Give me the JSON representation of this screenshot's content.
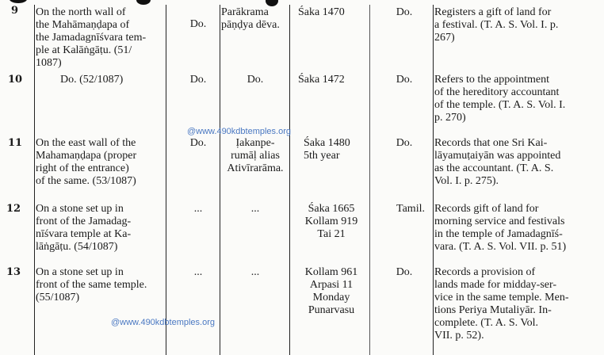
{
  "rows": [
    {
      "no": "9",
      "place": "On the north wall of\nthe Mahāmaṇḍapa of\nthe Jamadagnīśvara tem-\nple at Kalāṅgāṭu. (51/\n1087)",
      "lang": "Do.",
      "king": "Parākrama\npāṇḍya dēva.",
      "date": "Śaka 1470",
      "script": "Do.",
      "remarks": "Registers a gift of land for\na festival. (T. A. S. Vol. I. p.\n267)"
    },
    {
      "no": "10",
      "place": "Do. (52/1087)",
      "lang": "Do.",
      "king": "Do.",
      "date": "Śaka 1472",
      "script": "Do.",
      "remarks": "Refers to the appointment\nof the hereditory accountant\nof the temple. (T. A. S. Vol. I.\np. 270)"
    },
    {
      "no": "11",
      "place": "On the east wall of the\nMahamaṇḍapa (proper\nright of the entrance)\nof the same. (53/1087)",
      "lang": "Do.",
      "king": "Ịakanpe-\nrumāḷ alias\nAtivīrarāma.",
      "date": "Śaka 1480\n5th year",
      "script": "Do.",
      "remarks": "Records that one Sri Kai-\nlāyamuṭaiyān was appointed\nas the accountant. (T. A. S.\nVol. I. p. 275)."
    },
    {
      "no": "12",
      "place": "On a stone set up in\nfront of the Jamadag-\nnīśvara temple at Ka-\nlāṅgāṭu. (54/1087)",
      "lang": "...",
      "king": "...",
      "date": "Śaka 1665\nKollam 919\nTai 21",
      "script": "Tamil.",
      "remarks": "Records gift of land for\nmorning service and festivals\nin the temple of Jamadagnīś-\nvara. (T. A. S. Vol. VII. p. 51)"
    },
    {
      "no": "13",
      "place": "On a stone set up in\nfront of the same temple.\n(55/1087)",
      "lang": "...",
      "king": "...",
      "date": "Kollam 961\nArpasi 11\nMonday\nPunarvasu",
      "script": "Do.",
      "remarks": "Records a provision of\nlands made for midday-ser-\nvice in the same temple. Men-\ntions Periya Mutaliyār. In-\ncomplete. (T. A. S. Vol.\nVII. p. 52)."
    }
  ],
  "watermark": "@www.490kdbtemples.org",
  "watermark_color": "#4a78c2"
}
